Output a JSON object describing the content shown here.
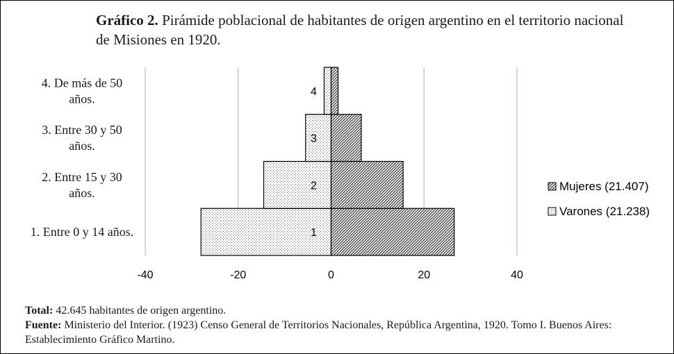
{
  "title": {
    "lead": "Gráfico 2.",
    "text": "Pirámide poblacional de habitantes de origen argentino en el territorio nacional de Misiones en 1920."
  },
  "chart_data": {
    "type": "bar",
    "orientation": "horizontal",
    "stacked_diverging": true,
    "categories": [
      "1. Entre 0 y 14 años.",
      "2. Entre 15 y 30 años.",
      "3. Entre 30 y 50 años.",
      "4. De más de 50 años."
    ],
    "bar_labels": [
      "1",
      "2",
      "3",
      "4"
    ],
    "series": [
      {
        "name": "Mujeres (21.407)",
        "values": [
          26.5,
          15.5,
          6.5,
          1.5
        ],
        "pattern": "diagonal-dark"
      },
      {
        "name": "Varones (21.238)",
        "values": [
          -28,
          -14.5,
          -5.5,
          -1.5
        ],
        "pattern": "dotted-light"
      }
    ],
    "xlim": [
      -40,
      40
    ],
    "xticks": [
      -40,
      -20,
      0,
      20,
      40
    ],
    "grid": "vertical",
    "legend": "right"
  },
  "notes": {
    "total_label": "Total:",
    "total_text": "42.645 habitantes de origen argentino.",
    "source_label": "Fuente:",
    "source_text": "Ministerio del Interior. (1923) Censo General de Territorios Nacionales, República Argentina, 1920. Tomo I. Buenos Aires: Establecimiento Gráfico Martino."
  },
  "colors": {
    "grid": "#b0b0b0",
    "bar_stroke": "#000000",
    "pattern_dark": "#4a4a4a",
    "pattern_light": "#555555"
  }
}
